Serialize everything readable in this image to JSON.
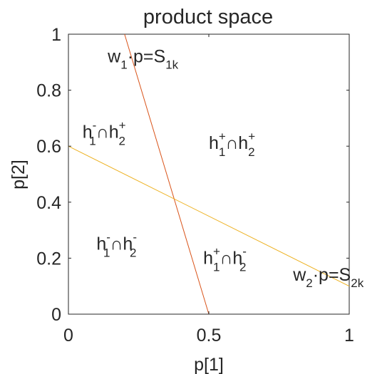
{
  "chart_data": {
    "type": "line",
    "title": "product space",
    "xlabel": "p[1]",
    "ylabel": "p[2]",
    "xlim": [
      0,
      1
    ],
    "ylim": [
      0,
      1
    ],
    "grid": false,
    "xticks": [
      {
        "value": 0,
        "label": "0"
      },
      {
        "value": 0.5,
        "label": "0.5"
      },
      {
        "value": 1,
        "label": "1"
      }
    ],
    "yticks": [
      {
        "value": 0,
        "label": "0"
      },
      {
        "value": 0.2,
        "label": "0.2"
      },
      {
        "value": 0.4,
        "label": "0.4"
      },
      {
        "value": 0.6,
        "label": "0.6"
      },
      {
        "value": 0.8,
        "label": "0.8"
      },
      {
        "value": 1,
        "label": "1"
      }
    ],
    "series": [
      {
        "color": "#d95319",
        "x": [
          0.2,
          0.5
        ],
        "y": [
          1.0,
          0.0
        ]
      },
      {
        "color": "#edb120",
        "x": [
          0.0,
          1.0
        ],
        "y": [
          0.6,
          0.1
        ]
      }
    ],
    "line_labels": [
      {
        "base": "w",
        "sub": "1",
        "mid": "·p=S",
        "sub2": "1k",
        "x": 0.14,
        "y": 0.9
      },
      {
        "base": "w",
        "sub": "2",
        "mid": "·p=S",
        "sub2": "2k",
        "x": 0.8,
        "y": 0.12
      }
    ],
    "region_labels": [
      {
        "sup1": "-",
        "sup2": "+",
        "x": 0.05,
        "y": 0.63
      },
      {
        "sup1": "+",
        "sup2": "+",
        "x": 0.5,
        "y": 0.59
      },
      {
        "sup1": "-",
        "sup2": "-",
        "x": 0.1,
        "y": 0.23
      },
      {
        "sup1": "+",
        "sup2": "-",
        "x": 0.48,
        "y": 0.18
      }
    ]
  }
}
